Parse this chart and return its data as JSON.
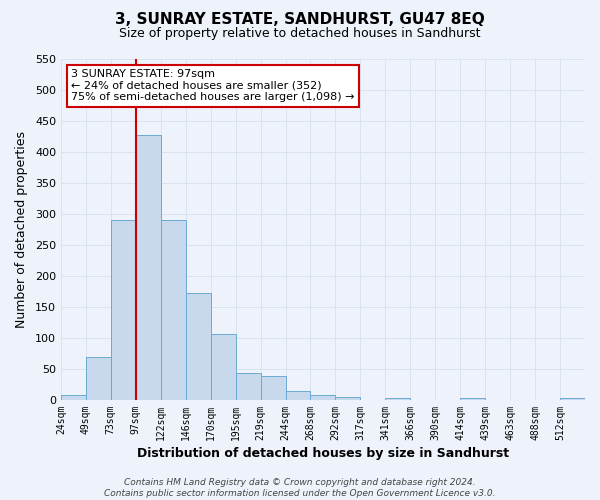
{
  "title": "3, SUNRAY ESTATE, SANDHURST, GU47 8EQ",
  "subtitle": "Size of property relative to detached houses in Sandhurst",
  "xlabel": "Distribution of detached houses by size in Sandhurst",
  "ylabel": "Number of detached properties",
  "bar_color": "#c8d9ee",
  "bar_edge_color": "#6aaad4",
  "bin_labels": [
    "24sqm",
    "49sqm",
    "73sqm",
    "97sqm",
    "122sqm",
    "146sqm",
    "170sqm",
    "195sqm",
    "219sqm",
    "244sqm",
    "268sqm",
    "292sqm",
    "317sqm",
    "341sqm",
    "366sqm",
    "390sqm",
    "414sqm",
    "439sqm",
    "463sqm",
    "488sqm",
    "512sqm"
  ],
  "bar_heights": [
    8,
    70,
    291,
    428,
    291,
    173,
    106,
    44,
    38,
    15,
    8,
    4,
    0,
    3,
    0,
    0,
    3,
    0,
    0,
    0,
    3
  ],
  "ylim": [
    0,
    550
  ],
  "yticks": [
    0,
    50,
    100,
    150,
    200,
    250,
    300,
    350,
    400,
    450,
    500,
    550
  ],
  "vline_x_idx": 3,
  "vline_color": "#cc0000",
  "annotation_title": "3 SUNRAY ESTATE: 97sqm",
  "annotation_line1": "← 24% of detached houses are smaller (352)",
  "annotation_line2": "75% of semi-detached houses are larger (1,098) →",
  "annotation_box_color": "#ffffff",
  "annotation_box_edge": "#cc0000",
  "footer_line1": "Contains HM Land Registry data © Crown copyright and database right 2024.",
  "footer_line2": "Contains public sector information licensed under the Open Government Licence v3.0.",
  "grid_color": "#d8e2f0",
  "background_color": "#eef2fa",
  "plot_bg_color": "#eef2fa"
}
